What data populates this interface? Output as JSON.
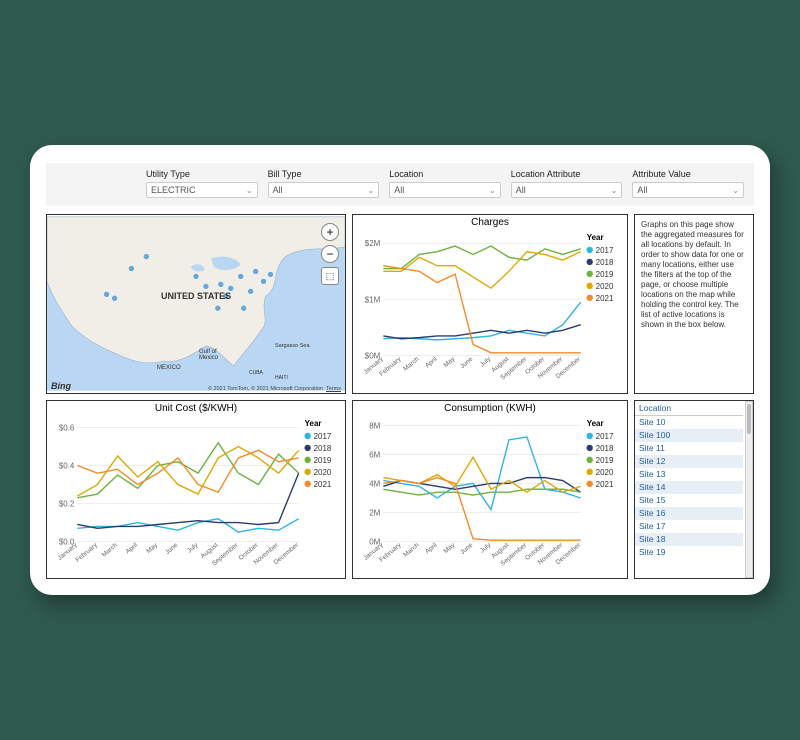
{
  "filters": [
    {
      "label": "Utility Type",
      "value": "ELECTRIC"
    },
    {
      "label": "Bill Type",
      "value": "All"
    },
    {
      "label": "Location",
      "value": "All"
    },
    {
      "label": "Location Attribute",
      "value": "All"
    },
    {
      "label": "Attribute Value",
      "value": "All"
    }
  ],
  "info_text": "Graphs on this page show the aggregated measures for all locations by default. In order to show data for one or many locations, either use the filters at the top of the page, or choose multiple locations on the map while holding the control key. The list of active locations is shown in the box below.",
  "map": {
    "title": "UNITED STATES",
    "mexico": "MEXICO",
    "cuba": "CUBA",
    "haiti": "HAITI",
    "gulf": "Gulf of\nMexico",
    "sargasso": "Sargasso Sea",
    "bing": "Bing",
    "attrib_line1": "© 2021 TomTom, © 2021 Microsoft Corporation",
    "attrib_line2": "Terms",
    "land_color": "#f0eee6",
    "water_color": "#b9d6f2",
    "border_color": "#9ab3c9",
    "dot_color": "#3a8fd6",
    "dots": [
      [
        60,
        78
      ],
      [
        68,
        82
      ],
      [
        180,
        80
      ],
      [
        175,
        68
      ],
      [
        185,
        72
      ],
      [
        195,
        60
      ],
      [
        205,
        75
      ],
      [
        210,
        55
      ],
      [
        218,
        65
      ],
      [
        225,
        58
      ],
      [
        198,
        92
      ],
      [
        172,
        92
      ],
      [
        160,
        70
      ],
      [
        150,
        60
      ],
      [
        100,
        40
      ],
      [
        85,
        52
      ]
    ]
  },
  "months": [
    "January",
    "February",
    "March",
    "April",
    "May",
    "June",
    "July",
    "August",
    "September",
    "October",
    "November",
    "December"
  ],
  "legend_title": "Year",
  "legend": [
    {
      "label": "2017",
      "color": "#2fb4e6"
    },
    {
      "label": "2018",
      "color": "#2a3b6e"
    },
    {
      "label": "2019",
      "color": "#6cb33f"
    },
    {
      "label": "2020",
      "color": "#e0a800"
    },
    {
      "label": "2021",
      "color": "#f28c28"
    }
  ],
  "charges": {
    "title": "Charges",
    "ylabel_prefix": "$",
    "ylabel_suffix": "M",
    "ylim": [
      0,
      2.2
    ],
    "yticks": [
      0,
      1,
      2
    ],
    "series": {
      "2017": [
        0.3,
        0.32,
        0.3,
        0.28,
        0.3,
        0.32,
        0.35,
        0.45,
        0.4,
        0.35,
        0.55,
        0.95
      ],
      "2018": [
        0.35,
        0.3,
        0.32,
        0.35,
        0.35,
        0.4,
        0.45,
        0.4,
        0.45,
        0.4,
        0.45,
        0.55
      ],
      "2019": [
        1.55,
        1.55,
        1.8,
        1.85,
        1.95,
        1.8,
        1.95,
        1.75,
        1.7,
        1.9,
        1.8,
        1.9
      ],
      "2020": [
        1.5,
        1.5,
        1.75,
        1.6,
        1.6,
        1.4,
        1.2,
        1.5,
        1.85,
        1.8,
        1.7,
        1.85
      ],
      "2021": [
        1.6,
        1.55,
        1.5,
        1.3,
        1.45,
        0.2,
        0.05,
        0.05,
        0.05,
        0.05,
        0.05,
        0.05
      ]
    }
  },
  "unitcost": {
    "title": "Unit Cost ($/KWH)",
    "ylim": [
      0,
      0.65
    ],
    "yticks": [
      0,
      0.2,
      0.4,
      0.6
    ],
    "series": {
      "2017": [
        0.07,
        0.08,
        0.08,
        0.1,
        0.08,
        0.06,
        0.1,
        0.12,
        0.05,
        0.07,
        0.06,
        0.12
      ],
      "2018": [
        0.09,
        0.07,
        0.08,
        0.08,
        0.09,
        0.1,
        0.11,
        0.1,
        0.1,
        0.09,
        0.1,
        0.36
      ],
      "2019": [
        0.23,
        0.25,
        0.35,
        0.28,
        0.4,
        0.42,
        0.36,
        0.52,
        0.36,
        0.3,
        0.46,
        0.36
      ],
      "2020": [
        0.24,
        0.3,
        0.45,
        0.34,
        0.42,
        0.3,
        0.25,
        0.44,
        0.5,
        0.44,
        0.36,
        0.48
      ],
      "2021": [
        0.4,
        0.36,
        0.38,
        0.3,
        0.36,
        0.44,
        0.3,
        0.26,
        0.44,
        0.48,
        0.42,
        0.44
      ]
    }
  },
  "consumption": {
    "title": "Consumption (KWH)",
    "ylim": [
      0,
      8.5
    ],
    "yticks": [
      0,
      2,
      4,
      6,
      8
    ],
    "ylabel_suffix": "M",
    "series": {
      "2017": [
        4.2,
        4.0,
        3.8,
        3.0,
        3.8,
        4.0,
        2.2,
        7.0,
        7.2,
        3.6,
        3.4,
        3.0
      ],
      "2018": [
        3.8,
        4.2,
        4.0,
        3.8,
        3.6,
        3.8,
        4.0,
        4.0,
        4.4,
        4.4,
        4.2,
        3.4
      ],
      "2019": [
        3.6,
        3.4,
        3.2,
        3.4,
        3.4,
        3.2,
        3.4,
        3.4,
        3.6,
        3.6,
        3.6,
        3.4
      ],
      "2020": [
        4.4,
        4.2,
        4.0,
        4.6,
        3.8,
        5.8,
        3.6,
        4.2,
        3.4,
        4.2,
        3.4,
        3.8
      ],
      "2021": [
        4.0,
        4.2,
        4.0,
        4.4,
        4.0,
        0.2,
        0.1,
        0.1,
        0.1,
        0.1,
        0.1,
        0.1
      ]
    }
  },
  "locations": {
    "header": "Location",
    "items": [
      "Site 10",
      "Site 100",
      "Site 11",
      "Site 12",
      "Site 13",
      "Site 14",
      "Site 15",
      "Site 16",
      "Site 17",
      "Site 18",
      "Site 19"
    ]
  },
  "colors": {
    "grid": "#dcdcdc",
    "axis": "#666",
    "text": "#333"
  }
}
